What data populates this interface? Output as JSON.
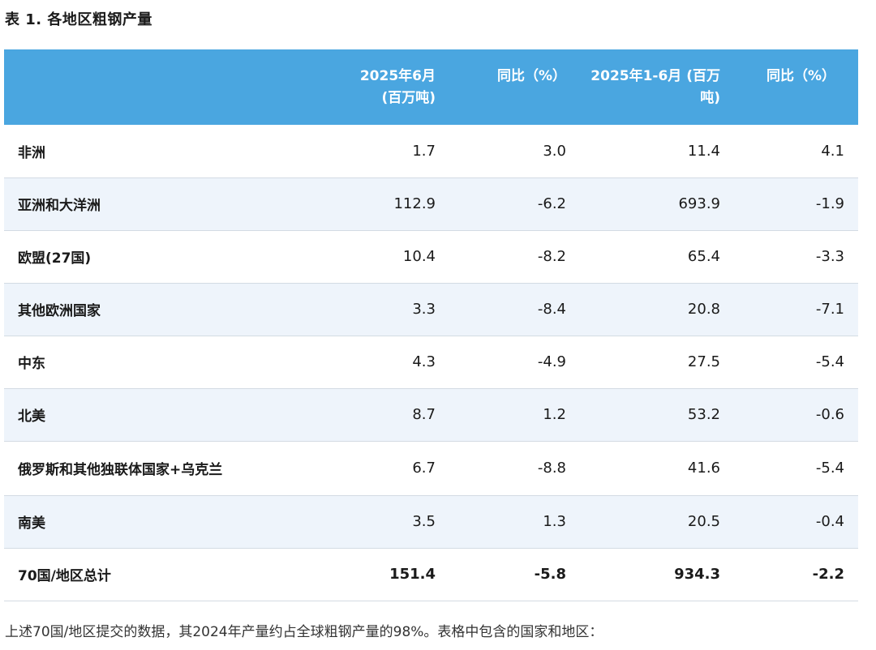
{
  "title": "表 1. 各地区粗钢产量",
  "headers": {
    "col1": "2025年6月 (百万吨)",
    "col2": "同比（%）",
    "col3": "2025年1-6月 (百万吨)",
    "col4": "同比（%）"
  },
  "rows": [
    {
      "region": "非洲",
      "jun": "1.7",
      "jun_yoy": "3.0",
      "ytd": "11.4",
      "ytd_yoy": "4.1"
    },
    {
      "region": "亚洲和大洋洲",
      "jun": "112.9",
      "jun_yoy": "-6.2",
      "ytd": "693.9",
      "ytd_yoy": "-1.9"
    },
    {
      "region": "欧盟(27国)",
      "jun": "10.4",
      "jun_yoy": "-8.2",
      "ytd": "65.4",
      "ytd_yoy": "-3.3"
    },
    {
      "region": "其他欧洲国家",
      "jun": "3.3",
      "jun_yoy": "-8.4",
      "ytd": "20.8",
      "ytd_yoy": "-7.1"
    },
    {
      "region": "中东",
      "jun": "4.3",
      "jun_yoy": "-4.9",
      "ytd": "27.5",
      "ytd_yoy": "-5.4"
    },
    {
      "region": "北美",
      "jun": "8.7",
      "jun_yoy": "1.2",
      "ytd": "53.2",
      "ytd_yoy": "-0.6"
    },
    {
      "region": "俄罗斯和其他独联体国家+乌克兰",
      "jun": "6.7",
      "jun_yoy": "-8.8",
      "ytd": "41.6",
      "ytd_yoy": "-5.4"
    },
    {
      "region": "南美",
      "jun": "3.5",
      "jun_yoy": "1.3",
      "ytd": "20.5",
      "ytd_yoy": "-0.4"
    }
  ],
  "total": {
    "region": "70国/地区总计",
    "jun": "151.4",
    "jun_yoy": "-5.8",
    "ytd": "934.3",
    "ytd_yoy": "-2.2"
  },
  "footnote": "上述70国/地区提交的数据，其2024年产量约占全球粗钢产量的98%。表格中包含的国家和地区：",
  "colors": {
    "header_bg": "#4aa6e0",
    "alt_row_bg": "#eef4fb",
    "divider": "#d3dbe3"
  }
}
